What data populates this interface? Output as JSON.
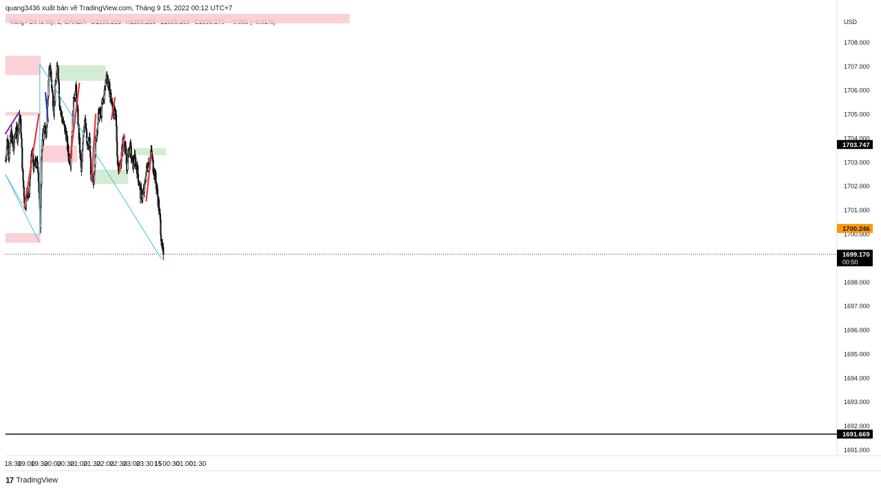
{
  "header": {
    "publisher_line": "quang3436 xuất bản về TradingView.com, Tháng 9 15, 2022 00:12 UTC+7"
  },
  "legend": {
    "symbol": "Vàng / Đô la Mỹ, 1, OANDA",
    "open": "O1699.255",
    "high": "H1699.255",
    "low": "L1699.160",
    "close": "C1699.170",
    "change": "−0.085 (−0.01%)"
  },
  "footer": {
    "logo_glyph": "17",
    "brand": "TradingView"
  },
  "colors": {
    "bg": "#ffffff",
    "candle": "#000000",
    "supply_zone": "#f9c9cf",
    "demand_zone": "#cde9cc",
    "trendline": "#4fc3dc",
    "red_line": "#e53340",
    "purple_line": "#9c27b0",
    "blue_segment": "#2341b8",
    "last_price_bg": "#000000",
    "alert_price_bg": "#ff9800"
  },
  "chart_data": {
    "type": "candlestick",
    "symbol": "XAU/USD",
    "timeframe": "1",
    "currency_label": "USD",
    "ylim": [
      1690.8,
      1709.2
    ],
    "y_ticks": [
      "1708.000",
      "1707.000",
      "1706.000",
      "1705.000",
      "1704.000",
      "1703.000",
      "1702.000",
      "1701.000",
      "1700.000",
      "1699.000",
      "1698.000",
      "1697.000",
      "1696.000",
      "1695.000",
      "1694.000",
      "1693.000",
      "1692.000",
      "1691.000"
    ],
    "x_axis": {
      "start": "18:13",
      "end": "01:43",
      "ticks": [
        {
          "t": "18:30",
          "label": "18:30"
        },
        {
          "t": "19:00",
          "label": "19:00"
        },
        {
          "t": "19:30",
          "label": "19:30"
        },
        {
          "t": "20:00",
          "label": "20:00"
        },
        {
          "t": "20:30",
          "label": "20:30"
        },
        {
          "t": "21:00",
          "label": "21:00"
        },
        {
          "t": "21:30",
          "label": "21:30"
        },
        {
          "t": "22:00",
          "label": "22:00"
        },
        {
          "t": "22:30",
          "label": "22:30"
        },
        {
          "t": "23:00",
          "label": "23:00"
        },
        {
          "t": "23:30",
          "label": "23:30"
        },
        {
          "t": "00:00",
          "label": "15"
        },
        {
          "t": "00:30",
          "label": "00:30"
        },
        {
          "t": "01:00",
          "label": "01:00"
        },
        {
          "t": "01:30",
          "label": "01:30"
        }
      ]
    },
    "price_path": [
      [
        "18:13",
        1703.1
      ],
      [
        "18:17",
        1703.9
      ],
      [
        "18:21",
        1703.4
      ],
      [
        "18:26",
        1704.2
      ],
      [
        "18:31",
        1703.5
      ],
      [
        "18:36",
        1704.4
      ],
      [
        "18:40",
        1704.1
      ],
      [
        "18:45",
        1705.0
      ],
      [
        "18:48",
        1704.4
      ],
      [
        "18:52",
        1702.5
      ],
      [
        "18:57",
        1701.2
      ],
      [
        "19:02",
        1701.8
      ],
      [
        "19:06",
        1701.6
      ],
      [
        "19:10",
        1702.8
      ],
      [
        "19:14",
        1703.4
      ],
      [
        "19:18",
        1702.7
      ],
      [
        "19:22",
        1703.0
      ],
      [
        "19:27",
        1702.8
      ],
      [
        "19:32",
        1700.4
      ],
      [
        "19:35",
        1703.3
      ],
      [
        "19:38",
        1704.0
      ],
      [
        "19:42",
        1704.6
      ],
      [
        "19:45",
        1703.9
      ],
      [
        "19:48",
        1705.2
      ],
      [
        "19:52",
        1706.7
      ],
      [
        "19:55",
        1707.0
      ],
      [
        "19:58",
        1706.2
      ],
      [
        "20:03",
        1705.2
      ],
      [
        "20:08",
        1706.5
      ],
      [
        "20:12",
        1707.1
      ],
      [
        "20:16",
        1705.5
      ],
      [
        "20:21",
        1704.9
      ],
      [
        "20:26",
        1704.5
      ],
      [
        "20:31",
        1704.2
      ],
      [
        "20:36",
        1703.3
      ],
      [
        "20:41",
        1703.1
      ],
      [
        "20:45",
        1704.5
      ],
      [
        "20:49",
        1705.8
      ],
      [
        "20:53",
        1706.0
      ],
      [
        "20:57",
        1705.0
      ],
      [
        "21:02",
        1703.5
      ],
      [
        "21:06",
        1702.5
      ],
      [
        "21:10",
        1704.3
      ],
      [
        "21:14",
        1705.0
      ],
      [
        "21:19",
        1703.5
      ],
      [
        "21:24",
        1703.9
      ],
      [
        "21:28",
        1702.3
      ],
      [
        "21:33",
        1702.1
      ],
      [
        "21:37",
        1703.5
      ],
      [
        "21:41",
        1704.4
      ],
      [
        "21:45",
        1705.0
      ],
      [
        "21:50",
        1705.0
      ],
      [
        "21:54",
        1705.5
      ],
      [
        "21:59",
        1706.0
      ],
      [
        "22:03",
        1706.8
      ],
      [
        "22:07",
        1706.2
      ],
      [
        "22:11",
        1705.9
      ],
      [
        "22:15",
        1705.4
      ],
      [
        "22:19",
        1705.1
      ],
      [
        "22:24",
        1704.9
      ],
      [
        "22:28",
        1703.0
      ],
      [
        "22:33",
        1702.7
      ],
      [
        "22:37",
        1703.3
      ],
      [
        "22:41",
        1704.0
      ],
      [
        "22:45",
        1703.7
      ],
      [
        "22:49",
        1702.7
      ],
      [
        "22:53",
        1703.5
      ],
      [
        "22:57",
        1703.6
      ],
      [
        "23:02",
        1702.9
      ],
      [
        "23:07",
        1703.1
      ],
      [
        "23:11",
        1702.9
      ],
      [
        "23:16",
        1702.3
      ],
      [
        "23:20",
        1701.7
      ],
      [
        "23:25",
        1701.6
      ],
      [
        "23:29",
        1701.9
      ],
      [
        "23:33",
        1702.6
      ],
      [
        "23:37",
        1702.9
      ],
      [
        "23:41",
        1703.1
      ],
      [
        "23:45",
        1703.4
      ],
      [
        "23:49",
        1702.8
      ],
      [
        "23:53",
        1702.5
      ],
      [
        "23:57",
        1701.9
      ],
      [
        "00:01",
        1701.3
      ],
      [
        "00:05",
        1700.5
      ],
      [
        "00:09",
        1699.4
      ],
      [
        "00:12",
        1699.17
      ]
    ],
    "zones": [
      {
        "kind": "supply",
        "from": "18:13",
        "to": "19:33",
        "top": 1707.45,
        "bottom": 1706.65
      },
      {
        "kind": "supply",
        "from": "18:13",
        "to": "19:33",
        "top": 1700.05,
        "bottom": 1699.65
      },
      {
        "kind": "supply",
        "from": "18:13",
        "to": "19:33",
        "top": 1705.1,
        "bottom": 1704.95
      },
      {
        "kind": "supply",
        "from": "19:33",
        "to": "20:56",
        "top": 1703.7,
        "bottom": 1703.0
      },
      {
        "kind": "demand",
        "from": "20:10",
        "to": "22:01",
        "top": 1707.05,
        "bottom": 1706.4
      },
      {
        "kind": "demand",
        "from": "21:32",
        "to": "22:52",
        "top": 1702.7,
        "bottom": 1702.1
      },
      {
        "kind": "demand",
        "from": "23:03",
        "to": "00:18",
        "top": 1703.6,
        "bottom": 1703.3
      }
    ],
    "lines": [
      {
        "color": "trendline",
        "points": [
          [
            "18:13",
            1702.5
          ],
          [
            "18:56",
            1701.1
          ]
        ]
      },
      {
        "color": "trendline",
        "points": [
          [
            "18:13",
            1702.5
          ],
          [
            "19:29",
            1699.7
          ]
        ]
      },
      {
        "color": "trendline",
        "points": [
          [
            "19:31",
            1700.0
          ],
          [
            "19:31",
            1707.1
          ]
        ]
      },
      {
        "color": "trendline",
        "points": [
          [
            "19:31",
            1707.1
          ],
          [
            "00:07",
            1699.0
          ]
        ]
      },
      {
        "color": "red_line",
        "points": [
          [
            "18:56",
            1701.1
          ],
          [
            "19:29",
            1705.0
          ]
        ]
      },
      {
        "color": "red_line",
        "points": [
          [
            "20:40",
            1703.1
          ],
          [
            "21:01",
            1706.3
          ]
        ]
      },
      {
        "color": "red_line",
        "points": [
          [
            "21:29",
            1702.2
          ],
          [
            "21:38",
            1705.0
          ]
        ]
      },
      {
        "color": "red_line",
        "points": [
          [
            "22:14",
            1704.8
          ],
          [
            "22:22",
            1705.7
          ]
        ]
      },
      {
        "color": "red_line",
        "points": [
          [
            "22:32",
            1702.6
          ],
          [
            "22:44",
            1704.1
          ]
        ]
      },
      {
        "color": "red_line",
        "points": [
          [
            "23:33",
            1701.4
          ],
          [
            "23:45",
            1703.4
          ]
        ]
      },
      {
        "color": "purple_line",
        "points": [
          [
            "18:13",
            1704.2
          ],
          [
            "18:44",
            1705.1
          ]
        ]
      },
      {
        "color": "blue_segment",
        "points": [
          [
            "19:44",
            1705.9
          ],
          [
            "19:50",
            1704.7
          ]
        ]
      }
    ],
    "horizontal_lines": [
      {
        "price": 1699.17,
        "style": "dotted"
      },
      {
        "price": 1691.669,
        "style": "solid"
      }
    ],
    "price_labels": [
      {
        "price": 1703.747,
        "text": "1703.747",
        "color": "last_price_bg"
      },
      {
        "price": 1700.246,
        "text": "1700.246",
        "color": "alert_price_bg"
      },
      {
        "price": 1699.17,
        "text": "1699.170",
        "sub": "00:50",
        "color": "last_price_bg"
      },
      {
        "price": 1691.669,
        "text": "1691.669",
        "color": "last_price_bg"
      }
    ],
    "last_price": 1699.17,
    "countdown": "00:50"
  }
}
